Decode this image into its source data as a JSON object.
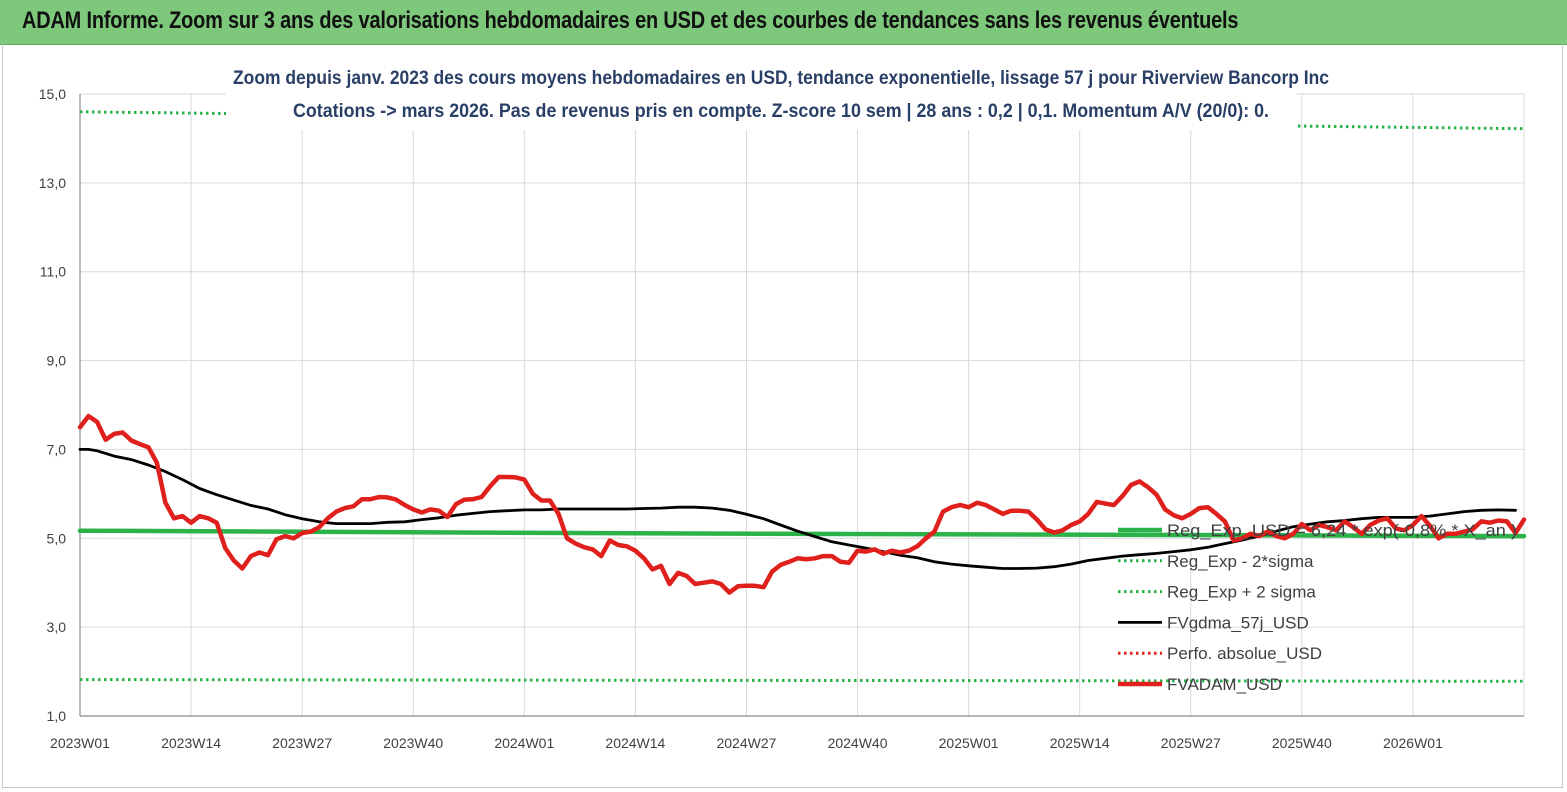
{
  "banner": {
    "title": "ADAM Informe. Zoom sur 3 ans des valorisations hebdomadaires en USD et des courbes de tendances sans les revenus éventuels",
    "color": "#7dc87a"
  },
  "chart_data": {
    "type": "line",
    "title": "Zoom depuis janv. 2023 des cours moyens hebdomadaires en USD, tendance exponentielle, lissage 57 j pour Riverview  Bancorp Inc",
    "subtitle": "Cotations -> mars 2026. Pas de revenus pris en  compte. Z-score 10 sem  | 28 ans : 0,2 | 0,1. Momentum A/V (20/0): 0.",
    "ylim": [
      1,
      15
    ],
    "yticks": [
      "1,0",
      "3,0",
      "5,0",
      "7,0",
      "9,0",
      "11,0",
      "13,0",
      "15,0"
    ],
    "xticks": [
      "2023W01",
      "2023W14",
      "2023W27",
      "2023W40",
      "2024W01",
      "2024W14",
      "2024W27",
      "2024W40",
      "2025W01",
      "2025W14",
      "2025W27",
      "2025W40",
      "2026W01"
    ],
    "x_count": 170,
    "grid": true,
    "legend_position": "right",
    "series": [
      {
        "name": "Reg_Exp_USD = 6,24 * exp(-0,8% * X_an )",
        "color": "#2bb34a",
        "style": "solid-thick",
        "points": [
          [
            0,
            5.17
          ],
          [
            68,
            5.11
          ],
          [
            169,
            5.05
          ]
        ]
      },
      {
        "name": "Reg_Exp - 2*sigma",
        "color": "#2bb34a",
        "style": "dotted",
        "points": [
          [
            0,
            1.82
          ],
          [
            169,
            1.78
          ]
        ]
      },
      {
        "name": "Reg_Exp + 2 sigma",
        "color": "#2bb34a",
        "style": "dotted",
        "points": [
          [
            0,
            14.6
          ],
          [
            169,
            14.22
          ]
        ]
      },
      {
        "name": "FVgdma_57j_USD",
        "color": "#000000",
        "style": "solid",
        "points": [
          [
            0,
            7.0
          ],
          [
            1,
            7.0
          ],
          [
            2,
            6.97
          ],
          [
            4,
            6.85
          ],
          [
            6,
            6.77
          ],
          [
            8,
            6.65
          ],
          [
            10,
            6.5
          ],
          [
            12,
            6.32
          ],
          [
            14,
            6.12
          ],
          [
            16,
            5.98
          ],
          [
            18,
            5.86
          ],
          [
            20,
            5.74
          ],
          [
            22,
            5.66
          ],
          [
            24,
            5.53
          ],
          [
            26,
            5.44
          ],
          [
            28,
            5.37
          ],
          [
            30,
            5.33
          ],
          [
            32,
            5.33
          ],
          [
            34,
            5.33
          ],
          [
            36,
            5.36
          ],
          [
            38,
            5.37
          ],
          [
            40,
            5.42
          ],
          [
            42,
            5.46
          ],
          [
            44,
            5.52
          ],
          [
            46,
            5.56
          ],
          [
            48,
            5.6
          ],
          [
            50,
            5.62
          ],
          [
            52,
            5.64
          ],
          [
            54,
            5.64
          ],
          [
            56,
            5.66
          ],
          [
            58,
            5.66
          ],
          [
            60,
            5.66
          ],
          [
            62,
            5.66
          ],
          [
            64,
            5.66
          ],
          [
            66,
            5.67
          ],
          [
            68,
            5.68
          ],
          [
            70,
            5.7
          ],
          [
            72,
            5.7
          ],
          [
            74,
            5.68
          ],
          [
            76,
            5.63
          ],
          [
            78,
            5.54
          ],
          [
            80,
            5.44
          ],
          [
            82,
            5.3
          ],
          [
            84,
            5.16
          ],
          [
            86,
            5.04
          ],
          [
            88,
            4.92
          ],
          [
            90,
            4.85
          ],
          [
            92,
            4.78
          ],
          [
            94,
            4.7
          ],
          [
            96,
            4.62
          ],
          [
            98,
            4.56
          ],
          [
            100,
            4.47
          ],
          [
            102,
            4.42
          ],
          [
            104,
            4.38
          ],
          [
            106,
            4.35
          ],
          [
            108,
            4.32
          ],
          [
            110,
            4.32
          ],
          [
            112,
            4.33
          ],
          [
            114,
            4.36
          ],
          [
            116,
            4.42
          ],
          [
            118,
            4.5
          ],
          [
            120,
            4.55
          ],
          [
            122,
            4.6
          ],
          [
            124,
            4.63
          ],
          [
            126,
            4.66
          ],
          [
            128,
            4.7
          ],
          [
            130,
            4.74
          ],
          [
            132,
            4.8
          ],
          [
            134,
            4.88
          ],
          [
            136,
            4.96
          ],
          [
            138,
            5.05
          ],
          [
            140,
            5.16
          ],
          [
            142,
            5.26
          ],
          [
            144,
            5.32
          ],
          [
            146,
            5.37
          ],
          [
            148,
            5.4
          ],
          [
            150,
            5.44
          ],
          [
            152,
            5.47
          ],
          [
            154,
            5.47
          ],
          [
            156,
            5.47
          ],
          [
            158,
            5.5
          ],
          [
            160,
            5.55
          ],
          [
            162,
            5.6
          ],
          [
            164,
            5.63
          ],
          [
            166,
            5.64
          ],
          [
            168,
            5.63
          ]
        ]
      },
      {
        "name": "Perfo. absolue_USD",
        "color": "#e0201c",
        "style": "dotted",
        "points": []
      },
      {
        "name": "FVADAM_USD",
        "color": "#e0201c",
        "style": "solid-thick",
        "points": [
          [
            0,
            7.5
          ],
          [
            1,
            7.75
          ],
          [
            2,
            7.62
          ],
          [
            3,
            7.22
          ],
          [
            4,
            7.35
          ],
          [
            5,
            7.38
          ],
          [
            6,
            7.2
          ],
          [
            7,
            7.12
          ],
          [
            8,
            7.05
          ],
          [
            9,
            6.7
          ],
          [
            10,
            5.8
          ],
          [
            11,
            5.45
          ],
          [
            12,
            5.5
          ],
          [
            13,
            5.35
          ],
          [
            14,
            5.5
          ],
          [
            15,
            5.45
          ],
          [
            16,
            5.35
          ],
          [
            17,
            4.78
          ],
          [
            18,
            4.5
          ],
          [
            19,
            4.32
          ],
          [
            20,
            4.6
          ],
          [
            21,
            4.68
          ],
          [
            22,
            4.62
          ],
          [
            23,
            4.98
          ],
          [
            24,
            5.05
          ],
          [
            25,
            5.0
          ],
          [
            26,
            5.12
          ],
          [
            27,
            5.15
          ],
          [
            28,
            5.25
          ],
          [
            29,
            5.45
          ],
          [
            30,
            5.6
          ],
          [
            31,
            5.68
          ],
          [
            32,
            5.72
          ],
          [
            33,
            5.88
          ],
          [
            34,
            5.88
          ],
          [
            35,
            5.93
          ],
          [
            36,
            5.92
          ],
          [
            37,
            5.87
          ],
          [
            38,
            5.75
          ],
          [
            39,
            5.65
          ],
          [
            40,
            5.58
          ],
          [
            41,
            5.65
          ],
          [
            42,
            5.62
          ],
          [
            43,
            5.48
          ],
          [
            44,
            5.77
          ],
          [
            45,
            5.87
          ],
          [
            46,
            5.88
          ],
          [
            47,
            5.93
          ],
          [
            48,
            6.17
          ],
          [
            49,
            6.38
          ],
          [
            50,
            6.38
          ],
          [
            51,
            6.37
          ],
          [
            52,
            6.32
          ],
          [
            53,
            6.0
          ],
          [
            54,
            5.85
          ],
          [
            55,
            5.85
          ],
          [
            56,
            5.55
          ],
          [
            57,
            5.0
          ],
          [
            58,
            4.88
          ],
          [
            59,
            4.8
          ],
          [
            60,
            4.75
          ],
          [
            61,
            4.6
          ],
          [
            62,
            4.95
          ],
          [
            63,
            4.85
          ],
          [
            64,
            4.82
          ],
          [
            65,
            4.72
          ],
          [
            66,
            4.55
          ],
          [
            67,
            4.3
          ],
          [
            68,
            4.38
          ],
          [
            69,
            3.97
          ],
          [
            70,
            4.22
          ],
          [
            71,
            4.15
          ],
          [
            72,
            3.97
          ],
          [
            73,
            4.0
          ],
          [
            74,
            4.03
          ],
          [
            75,
            3.97
          ],
          [
            76,
            3.78
          ],
          [
            77,
            3.92
          ],
          [
            78,
            3.93
          ],
          [
            79,
            3.93
          ],
          [
            80,
            3.9
          ],
          [
            81,
            4.25
          ],
          [
            82,
            4.4
          ],
          [
            83,
            4.47
          ],
          [
            84,
            4.55
          ],
          [
            85,
            4.53
          ],
          [
            86,
            4.55
          ],
          [
            87,
            4.6
          ],
          [
            88,
            4.6
          ],
          [
            89,
            4.47
          ],
          [
            90,
            4.45
          ],
          [
            91,
            4.72
          ],
          [
            92,
            4.7
          ],
          [
            93,
            4.75
          ],
          [
            94,
            4.65
          ],
          [
            95,
            4.72
          ],
          [
            96,
            4.68
          ],
          [
            97,
            4.72
          ],
          [
            98,
            4.82
          ],
          [
            99,
            5.0
          ],
          [
            100,
            5.15
          ],
          [
            101,
            5.6
          ],
          [
            102,
            5.7
          ],
          [
            103,
            5.75
          ],
          [
            104,
            5.7
          ],
          [
            105,
            5.8
          ],
          [
            106,
            5.75
          ],
          [
            107,
            5.65
          ],
          [
            108,
            5.55
          ],
          [
            109,
            5.62
          ],
          [
            110,
            5.62
          ],
          [
            111,
            5.6
          ],
          [
            112,
            5.42
          ],
          [
            113,
            5.2
          ],
          [
            114,
            5.13
          ],
          [
            115,
            5.18
          ],
          [
            116,
            5.3
          ],
          [
            117,
            5.38
          ],
          [
            118,
            5.55
          ],
          [
            119,
            5.82
          ],
          [
            120,
            5.78
          ],
          [
            121,
            5.75
          ],
          [
            122,
            5.95
          ],
          [
            123,
            6.2
          ],
          [
            124,
            6.28
          ],
          [
            125,
            6.15
          ],
          [
            126,
            5.98
          ],
          [
            127,
            5.65
          ],
          [
            128,
            5.52
          ],
          [
            129,
            5.45
          ],
          [
            130,
            5.55
          ],
          [
            131,
            5.68
          ],
          [
            132,
            5.7
          ],
          [
            133,
            5.55
          ],
          [
            134,
            5.38
          ],
          [
            135,
            4.95
          ],
          [
            136,
            5.0
          ],
          [
            137,
            5.1
          ],
          [
            138,
            5.05
          ],
          [
            139,
            5.15
          ],
          [
            140,
            5.05
          ],
          [
            141,
            5.0
          ],
          [
            142,
            5.1
          ],
          [
            143,
            5.32
          ],
          [
            144,
            5.18
          ],
          [
            145,
            5.3
          ],
          [
            146,
            5.25
          ],
          [
            147,
            5.18
          ],
          [
            148,
            5.38
          ],
          [
            149,
            5.25
          ],
          [
            150,
            5.1
          ],
          [
            151,
            5.3
          ],
          [
            152,
            5.4
          ],
          [
            153,
            5.45
          ],
          [
            154,
            5.22
          ],
          [
            155,
            5.18
          ],
          [
            156,
            5.3
          ],
          [
            157,
            5.5
          ],
          [
            158,
            5.28
          ],
          [
            159,
            5.0
          ],
          [
            160,
            5.1
          ],
          [
            161,
            5.1
          ],
          [
            162,
            5.15
          ],
          [
            163,
            5.2
          ],
          [
            164,
            5.38
          ],
          [
            165,
            5.35
          ],
          [
            166,
            5.4
          ],
          [
            167,
            5.38
          ],
          [
            168,
            5.12
          ],
          [
            169,
            5.42
          ]
        ]
      }
    ]
  }
}
